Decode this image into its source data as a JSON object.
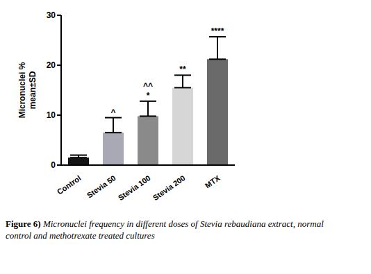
{
  "chart_data": {
    "type": "bar",
    "caption_label": "Figure 6)",
    "caption": "Micronuclei frequency in different doses of Stevia rebaudiana extract, normal control and methotrexate treated cultures",
    "ylabel": [
      "Micronuclei %",
      "mean±SD"
    ],
    "categories": [
      "Control",
      "Stevia 50",
      "Stevia 100",
      "Stevia 200",
      "MTX"
    ],
    "values": [
      1.5,
      6.5,
      9.8,
      15.5,
      21.2
    ],
    "errors": [
      0.5,
      3.0,
      3.0,
      2.5,
      4.5
    ],
    "colors": [
      "#141414",
      "#a9a9b6",
      "#8a8a8a",
      "#d6d6d6",
      "#6a6a6a"
    ],
    "ylim": [
      0,
      30
    ],
    "yticks": [
      0,
      10,
      20,
      30
    ],
    "grid": false,
    "annotations": [
      {
        "category": "Stevia 50",
        "texts": [
          "^"
        ]
      },
      {
        "category": "Stevia 100",
        "texts": [
          "^^",
          "*"
        ]
      },
      {
        "category": "Stevia 200",
        "texts": [
          "**"
        ]
      },
      {
        "category": "MTX",
        "texts": [
          "****"
        ]
      }
    ]
  }
}
